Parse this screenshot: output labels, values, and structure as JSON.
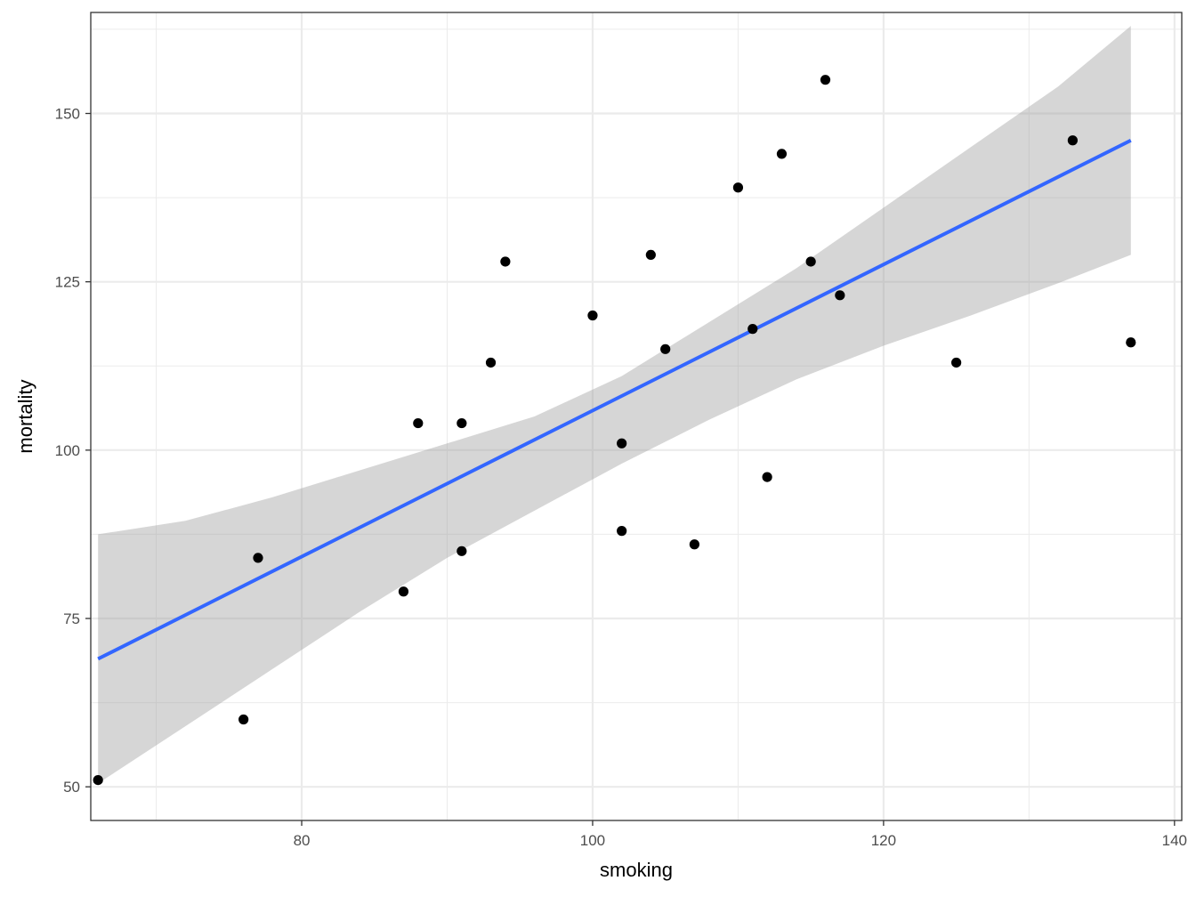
{
  "chart_data": {
    "type": "scatter",
    "title": "",
    "xlabel": "smoking",
    "ylabel": "mortality",
    "xlim": [
      65.5,
      140.5
    ],
    "ylim": [
      45,
      165
    ],
    "x_ticks": [
      80,
      100,
      120,
      140
    ],
    "y_ticks": [
      50,
      75,
      100,
      125,
      150
    ],
    "grid": true,
    "legend": "none",
    "points": [
      {
        "x": 66,
        "y": 51
      },
      {
        "x": 76,
        "y": 60
      },
      {
        "x": 77,
        "y": 84
      },
      {
        "x": 87,
        "y": 79
      },
      {
        "x": 88,
        "y": 104
      },
      {
        "x": 91,
        "y": 104
      },
      {
        "x": 91,
        "y": 85
      },
      {
        "x": 93,
        "y": 113
      },
      {
        "x": 94,
        "y": 128
      },
      {
        "x": 100,
        "y": 120
      },
      {
        "x": 102,
        "y": 101
      },
      {
        "x": 102,
        "y": 88
      },
      {
        "x": 104,
        "y": 129
      },
      {
        "x": 105,
        "y": 115
      },
      {
        "x": 107,
        "y": 86
      },
      {
        "x": 110,
        "y": 139
      },
      {
        "x": 111,
        "y": 118
      },
      {
        "x": 112,
        "y": 96
      },
      {
        "x": 113,
        "y": 144
      },
      {
        "x": 115,
        "y": 128
      },
      {
        "x": 116,
        "y": 155
      },
      {
        "x": 117,
        "y": 123
      },
      {
        "x": 125,
        "y": 113
      },
      {
        "x": 133,
        "y": 146
      },
      {
        "x": 137,
        "y": 116
      }
    ],
    "fit_line": {
      "x": [
        66,
        137
      ],
      "y": [
        69,
        146
      ]
    },
    "confidence_band": {
      "x": [
        66,
        72,
        78,
        84,
        90,
        96,
        102,
        108,
        114,
        120,
        126,
        132,
        137
      ],
      "lower": [
        50.5,
        59,
        67.5,
        76,
        84,
        91,
        98,
        104.5,
        110.5,
        115.5,
        120,
        124.8,
        129
      ],
      "upper": [
        87.5,
        89.5,
        93,
        97,
        101,
        105,
        111,
        119,
        127,
        136,
        145,
        154,
        163
      ]
    },
    "colors": {
      "points": "#000000",
      "fit_line": "#3366ff",
      "band": "#999999",
      "grid": "#ebebeb",
      "panel_border": "#333333",
      "tick_text": "#4d4d4d"
    }
  }
}
